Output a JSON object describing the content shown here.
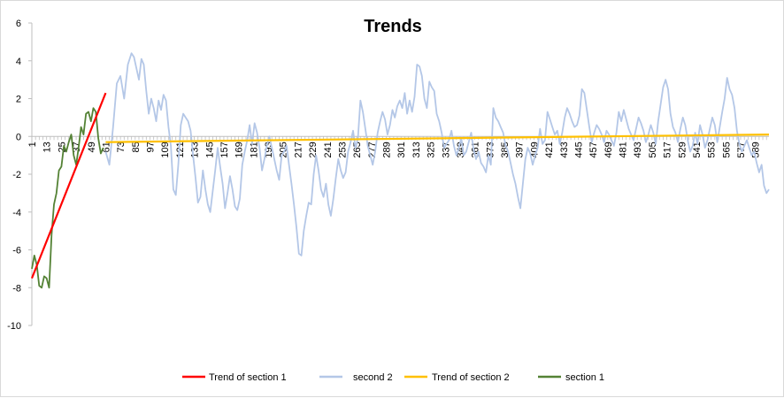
{
  "chart_data": {
    "type": "line",
    "title": "Trends",
    "xlabel": "",
    "ylabel": "",
    "ylim": [
      -10,
      6
    ],
    "yticks": [
      6,
      4,
      2,
      0,
      -2,
      -4,
      -6,
      -8,
      -10
    ],
    "xlim": [
      1,
      600
    ],
    "xticks": [
      1,
      13,
      25,
      37,
      49,
      61,
      73,
      85,
      97,
      109,
      121,
      133,
      145,
      157,
      169,
      181,
      193,
      205,
      217,
      229,
      241,
      253,
      265,
      277,
      289,
      301,
      313,
      325,
      337,
      349,
      361,
      373,
      385,
      397,
      409,
      421,
      433,
      445,
      457,
      469,
      481,
      493,
      505,
      517,
      529,
      541,
      553,
      565,
      577,
      589
    ],
    "grid": false,
    "legend": "bottom",
    "series": [
      {
        "name": "Trend of section 1",
        "color": "#ff0000",
        "x": [
          1,
          61
        ],
        "y": [
          -7.5,
          2.3
        ]
      },
      {
        "name": "second 2",
        "color": "#b4c7e7",
        "x": [
          61,
          64,
          67,
          70,
          73,
          76,
          79,
          82,
          84,
          86,
          88,
          90,
          92,
          94,
          96,
          98,
          100,
          102,
          104,
          106,
          108,
          110,
          112,
          114,
          116,
          118,
          120,
          122,
          124,
          126,
          128,
          130,
          132,
          134,
          136,
          138,
          140,
          142,
          144,
          146,
          148,
          150,
          152,
          154,
          156,
          158,
          160,
          162,
          164,
          166,
          168,
          170,
          172,
          174,
          176,
          178,
          180,
          182,
          184,
          186,
          188,
          190,
          192,
          194,
          196,
          198,
          200,
          202,
          204,
          206,
          208,
          210,
          212,
          214,
          216,
          218,
          220,
          222,
          224,
          226,
          228,
          230,
          232,
          234,
          236,
          238,
          240,
          242,
          244,
          246,
          248,
          250,
          252,
          254,
          256,
          258,
          260,
          262,
          264,
          266,
          268,
          270,
          272,
          274,
          276,
          278,
          280,
          282,
          284,
          286,
          288,
          290,
          292,
          294,
          296,
          298,
          300,
          302,
          304,
          306,
          308,
          310,
          312,
          314,
          316,
          318,
          320,
          322,
          324,
          326,
          328,
          330,
          332,
          334,
          336,
          338,
          340,
          342,
          344,
          346,
          348,
          350,
          352,
          354,
          356,
          358,
          360,
          362,
          364,
          366,
          368,
          370,
          372,
          374,
          376,
          378,
          380,
          382,
          384,
          386,
          388,
          390,
          392,
          394,
          396,
          398,
          400,
          402,
          404,
          406,
          408,
          410,
          412,
          414,
          416,
          418,
          420,
          422,
          424,
          426,
          428,
          430,
          432,
          434,
          436,
          438,
          440,
          442,
          444,
          446,
          448,
          450,
          452,
          454,
          456,
          458,
          460,
          462,
          464,
          466,
          468,
          470,
          472,
          474,
          476,
          478,
          480,
          482,
          484,
          486,
          488,
          490,
          492,
          494,
          496,
          498,
          500,
          502,
          504,
          506,
          508,
          510,
          512,
          514,
          516,
          518,
          520,
          522,
          524,
          526,
          528,
          530,
          532,
          534,
          536,
          538,
          540,
          542,
          544,
          546,
          548,
          550,
          552,
          554,
          556,
          558,
          560,
          562,
          564,
          566,
          568,
          570,
          572,
          574,
          576,
          578,
          580,
          582,
          584,
          586,
          588,
          590,
          592,
          594,
          596,
          598,
          600
        ],
        "y": [
          -0.8,
          -1.5,
          0.5,
          2.8,
          3.2,
          2.0,
          3.8,
          4.4,
          4.2,
          3.6,
          3.0,
          4.1,
          3.8,
          2.4,
          1.2,
          2.0,
          1.5,
          0.8,
          1.9,
          1.4,
          2.2,
          1.9,
          0.5,
          -0.5,
          -2.8,
          -3.1,
          -1.5,
          0.6,
          1.2,
          1.0,
          0.8,
          0.3,
          -1.0,
          -2.2,
          -3.5,
          -3.2,
          -1.8,
          -2.8,
          -3.6,
          -4.0,
          -2.9,
          -1.8,
          -0.6,
          -1.6,
          -2.5,
          -3.8,
          -3.0,
          -2.1,
          -2.8,
          -3.7,
          -3.9,
          -3.3,
          -1.5,
          -0.8,
          -0.2,
          0.6,
          -0.4,
          0.7,
          0.2,
          -0.6,
          -1.8,
          -1.2,
          -0.5,
          0.0,
          -0.6,
          -1.2,
          -1.8,
          -2.3,
          -1.0,
          -0.8,
          -0.5,
          -1.5,
          -2.5,
          -3.6,
          -4.8,
          -6.2,
          -6.3,
          -5.0,
          -4.2,
          -3.5,
          -3.6,
          -2.0,
          -1.0,
          -1.8,
          -2.8,
          -3.2,
          -2.5,
          -3.6,
          -4.2,
          -3.3,
          -2.2,
          -1.2,
          -1.8,
          -2.2,
          -1.9,
          -0.8,
          -0.3,
          0.3,
          -0.6,
          -0.1,
          1.9,
          1.3,
          0.4,
          -0.5,
          -1.0,
          -1.5,
          -0.8,
          0.2,
          0.8,
          1.3,
          0.9,
          0.1,
          0.6,
          1.4,
          1.0,
          1.6,
          1.9,
          1.5,
          2.3,
          1.2,
          1.9,
          1.3,
          2.1,
          3.8,
          3.7,
          3.2,
          2.0,
          1.5,
          2.9,
          2.6,
          2.4,
          1.2,
          0.8,
          0.2,
          -0.6,
          -0.4,
          -0.2,
          0.3,
          -0.5,
          -1.0,
          -0.6,
          -0.1,
          -1.0,
          -0.8,
          -0.3,
          0.2,
          -0.7,
          -1.2,
          -0.8,
          -1.4,
          -1.6,
          -1.9,
          -1.0,
          -1.5,
          1.5,
          1.0,
          0.8,
          0.5,
          0.2,
          -0.5,
          -0.8,
          -1.4,
          -2.0,
          -2.5,
          -3.2,
          -3.8,
          -2.5,
          -1.2,
          -0.6,
          -0.9,
          -1.5,
          -1.0,
          -0.6,
          0.4,
          -0.4,
          -0.2,
          1.3,
          0.9,
          0.5,
          0.1,
          0.3,
          -0.4,
          0.2,
          1.0,
          1.5,
          1.2,
          0.8,
          0.5,
          0.6,
          1.1,
          2.5,
          2.3,
          1.4,
          0.5,
          -0.3,
          0.2,
          0.6,
          0.4,
          0.1,
          -0.3,
          0.3,
          0.1,
          -0.2,
          -0.5,
          0.2,
          1.3,
          0.8,
          1.4,
          0.9,
          0.4,
          0.1,
          -0.2,
          0.4,
          1.0,
          0.7,
          0.3,
          -0.3,
          0.1,
          0.6,
          0.2,
          -0.4,
          0.8,
          1.7,
          2.6,
          3.0,
          2.5,
          1.2,
          0.5,
          0.2,
          -0.3,
          0.4,
          1.0,
          0.6,
          -0.2,
          -0.8,
          -0.5,
          0.2,
          -0.4,
          0.6,
          0.1,
          -0.6,
          -0.2,
          0.4,
          1.0,
          0.6,
          -0.3,
          0.5,
          1.3,
          2.0,
          3.1,
          2.5,
          2.2,
          1.5,
          0.3,
          -0.4,
          -0.8,
          -0.5,
          -0.2,
          -0.6,
          -1.0,
          -0.8,
          -1.4,
          -1.9,
          -1.5,
          -2.6,
          -3.0,
          -2.8
        ]
      },
      {
        "name": "Trend of section 2",
        "color": "#ffc000",
        "x": [
          61,
          600
        ],
        "y": [
          -0.3,
          0.1
        ]
      },
      {
        "name": "section 1",
        "color": "#548235",
        "x": [
          1,
          3,
          5,
          7,
          9,
          11,
          13,
          15,
          17,
          19,
          21,
          23,
          25,
          27,
          29,
          31,
          33,
          35,
          37,
          39,
          41,
          43,
          45,
          47,
          49,
          51,
          53,
          55,
          57,
          59
        ],
        "y": [
          -7.0,
          -6.3,
          -6.8,
          -7.9,
          -8.0,
          -7.4,
          -7.5,
          -8.0,
          -5.2,
          -3.6,
          -3.0,
          -1.8,
          -1.6,
          -0.5,
          -0.8,
          -0.3,
          0.1,
          -1.0,
          -1.5,
          -0.6,
          0.5,
          0.1,
          1.2,
          1.3,
          0.8,
          1.5,
          1.3,
          -0.1,
          -0.9,
          -0.6
        ]
      }
    ]
  }
}
